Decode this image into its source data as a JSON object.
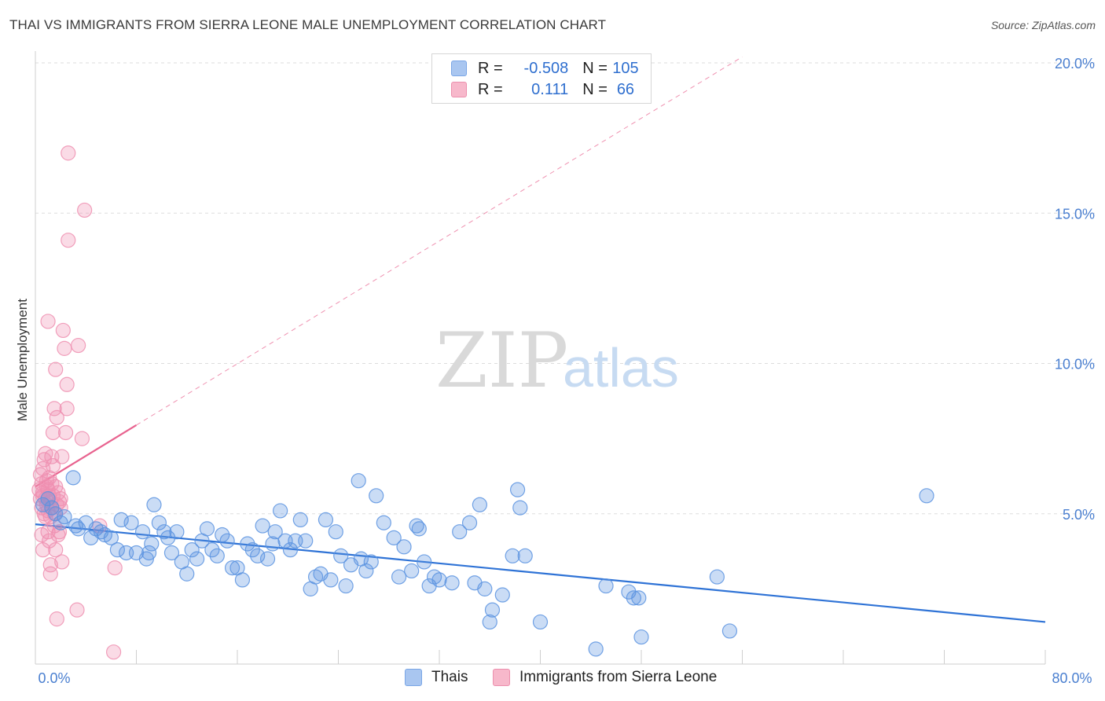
{
  "title": "THAI VS IMMIGRANTS FROM SIERRA LEONE MALE UNEMPLOYMENT CORRELATION CHART",
  "source": "Source: ZipAtlas.com",
  "watermark": {
    "zip": "ZIP",
    "atlas": "atlas"
  },
  "legend": {
    "r_label": "R =",
    "n_label": "N =",
    "rows": [
      {
        "r": "-0.508",
        "n": "105",
        "color": "#a9c6f0",
        "border": "#7aa6e6"
      },
      {
        "r": "0.111",
        "n": "66",
        "color": "#f7b8cb",
        "border": "#ec8fad"
      }
    ]
  },
  "colors": {
    "blue": "#5b93e0",
    "pink": "#ee8fb0",
    "blue_line": "#2f73d6",
    "pink_line": "#e8638f",
    "grid": "#dddddd",
    "tick_text": "#4a7fd0"
  },
  "chart_data": {
    "type": "scatter",
    "xlabel": "",
    "ylabel": "Male Unemployment",
    "xlim": [
      0,
      80
    ],
    "ylim": [
      0,
      20
    ],
    "x_tick_labels": [
      "0.0%",
      "80.0%"
    ],
    "y_ticks": [
      5,
      10,
      15,
      20
    ],
    "y_tick_labels": [
      "5.0%",
      "10.0%",
      "15.0%",
      "20.0%"
    ],
    "series": [
      {
        "name": "Thais",
        "color": "#5b93e0",
        "points": [
          [
            0.6,
            5.3
          ],
          [
            1.0,
            5.5
          ],
          [
            1.3,
            5.2
          ],
          [
            1.6,
            5.0
          ],
          [
            2.0,
            4.7
          ],
          [
            2.3,
            4.9
          ],
          [
            3.0,
            6.2
          ],
          [
            3.2,
            4.6
          ],
          [
            3.4,
            4.5
          ],
          [
            4.0,
            4.7
          ],
          [
            4.4,
            4.2
          ],
          [
            4.8,
            4.5
          ],
          [
            5.2,
            4.4
          ],
          [
            5.5,
            4.3
          ],
          [
            6.0,
            4.2
          ],
          [
            6.5,
            3.8
          ],
          [
            6.8,
            4.8
          ],
          [
            7.2,
            3.7
          ],
          [
            7.6,
            4.7
          ],
          [
            8.0,
            3.7
          ],
          [
            8.5,
            4.4
          ],
          [
            8.8,
            3.5
          ],
          [
            9.2,
            4.0
          ],
          [
            9.4,
            5.3
          ],
          [
            9.8,
            4.7
          ],
          [
            10.2,
            4.4
          ],
          [
            10.5,
            4.2
          ],
          [
            10.8,
            3.7
          ],
          [
            11.2,
            4.4
          ],
          [
            11.6,
            3.4
          ],
          [
            12.0,
            3.0
          ],
          [
            12.4,
            3.8
          ],
          [
            12.8,
            3.5
          ],
          [
            13.2,
            4.1
          ],
          [
            13.6,
            4.5
          ],
          [
            14.0,
            3.8
          ],
          [
            14.4,
            3.6
          ],
          [
            14.8,
            4.3
          ],
          [
            15.2,
            4.1
          ],
          [
            15.6,
            3.2
          ],
          [
            16.0,
            3.2
          ],
          [
            16.4,
            2.8
          ],
          [
            16.8,
            4.0
          ],
          [
            17.2,
            3.8
          ],
          [
            17.6,
            3.6
          ],
          [
            18.0,
            4.6
          ],
          [
            18.4,
            3.5
          ],
          [
            18.8,
            4.0
          ],
          [
            19.0,
            4.4
          ],
          [
            19.4,
            5.1
          ],
          [
            19.8,
            4.1
          ],
          [
            20.2,
            3.8
          ],
          [
            20.6,
            4.1
          ],
          [
            21.0,
            4.8
          ],
          [
            21.4,
            4.1
          ],
          [
            21.8,
            2.5
          ],
          [
            22.2,
            2.9
          ],
          [
            22.6,
            3.0
          ],
          [
            23.0,
            4.8
          ],
          [
            23.4,
            2.8
          ],
          [
            23.8,
            4.4
          ],
          [
            24.2,
            3.6
          ],
          [
            24.6,
            2.6
          ],
          [
            25.0,
            3.3
          ],
          [
            25.6,
            6.1
          ],
          [
            25.8,
            3.5
          ],
          [
            26.2,
            3.1
          ],
          [
            26.6,
            3.4
          ],
          [
            27.0,
            5.6
          ],
          [
            27.6,
            4.7
          ],
          [
            28.4,
            4.2
          ],
          [
            28.8,
            2.9
          ],
          [
            29.2,
            3.9
          ],
          [
            29.8,
            3.1
          ],
          [
            30.2,
            4.6
          ],
          [
            30.4,
            4.5
          ],
          [
            30.8,
            3.4
          ],
          [
            31.2,
            2.6
          ],
          [
            31.6,
            2.9
          ],
          [
            32.0,
            2.8
          ],
          [
            33.0,
            2.7
          ],
          [
            33.6,
            4.4
          ],
          [
            34.4,
            4.7
          ],
          [
            34.8,
            2.7
          ],
          [
            35.2,
            5.3
          ],
          [
            35.6,
            2.5
          ],
          [
            36.0,
            1.4
          ],
          [
            36.2,
            1.8
          ],
          [
            37.0,
            2.3
          ],
          [
            37.8,
            3.6
          ],
          [
            38.2,
            5.8
          ],
          [
            38.4,
            5.2
          ],
          [
            38.8,
            3.6
          ],
          [
            40.0,
            1.4
          ],
          [
            44.4,
            0.5
          ],
          [
            45.2,
            2.6
          ],
          [
            47.0,
            2.4
          ],
          [
            47.4,
            2.2
          ],
          [
            47.8,
            2.2
          ],
          [
            48.0,
            0.9
          ],
          [
            54.0,
            2.9
          ],
          [
            55.0,
            1.1
          ],
          [
            70.6,
            5.6
          ],
          [
            9.0,
            3.7
          ]
        ]
      },
      {
        "name": "Immigrants from Sierra Leone",
        "color": "#ee8fb0",
        "points": [
          [
            0.3,
            5.8
          ],
          [
            0.4,
            6.3
          ],
          [
            0.4,
            5.5
          ],
          [
            0.5,
            6.0
          ],
          [
            0.5,
            5.2
          ],
          [
            0.6,
            6.5
          ],
          [
            0.6,
            5.7
          ],
          [
            0.7,
            5.0
          ],
          [
            0.7,
            6.8
          ],
          [
            0.8,
            5.5
          ],
          [
            0.8,
            4.9
          ],
          [
            0.9,
            6.1
          ],
          [
            0.9,
            5.3
          ],
          [
            1.0,
            5.8
          ],
          [
            1.0,
            5.1
          ],
          [
            1.0,
            4.4
          ],
          [
            1.1,
            6.2
          ],
          [
            1.1,
            5.6
          ],
          [
            1.2,
            5.4
          ],
          [
            1.2,
            4.9
          ],
          [
            1.3,
            6.0
          ],
          [
            1.3,
            5.2
          ],
          [
            1.4,
            6.6
          ],
          [
            1.4,
            5.6
          ],
          [
            1.5,
            4.6
          ],
          [
            1.5,
            5.0
          ],
          [
            1.6,
            5.9
          ],
          [
            1.7,
            5.3
          ],
          [
            1.8,
            5.7
          ],
          [
            1.8,
            4.3
          ],
          [
            1.9,
            5.4
          ],
          [
            2.0,
            5.5
          ],
          [
            0.5,
            4.3
          ],
          [
            0.6,
            3.8
          ],
          [
            0.8,
            7.0
          ],
          [
            1.0,
            11.4
          ],
          [
            1.1,
            4.1
          ],
          [
            1.2,
            3.3
          ],
          [
            1.2,
            3.0
          ],
          [
            1.4,
            7.7
          ],
          [
            1.5,
            8.5
          ],
          [
            1.6,
            3.8
          ],
          [
            1.6,
            9.8
          ],
          [
            1.7,
            8.2
          ],
          [
            1.7,
            1.5
          ],
          [
            1.9,
            4.4
          ],
          [
            2.0,
            5.2
          ],
          [
            2.1,
            6.9
          ],
          [
            2.1,
            3.4
          ],
          [
            2.2,
            11.1
          ],
          [
            2.3,
            10.5
          ],
          [
            2.4,
            7.7
          ],
          [
            2.5,
            8.5
          ],
          [
            2.5,
            9.3
          ],
          [
            2.6,
            17.0
          ],
          [
            2.6,
            14.1
          ],
          [
            3.3,
            1.8
          ],
          [
            3.4,
            10.6
          ],
          [
            3.7,
            7.5
          ],
          [
            3.9,
            15.1
          ],
          [
            5.1,
            4.6
          ],
          [
            6.2,
            0.4
          ],
          [
            6.3,
            3.2
          ],
          [
            0.9,
            5.9
          ],
          [
            1.3,
            6.9
          ],
          [
            0.6,
            5.6
          ]
        ]
      }
    ],
    "trendlines": [
      {
        "series": "Thais",
        "x": [
          0,
          80
        ],
        "y": [
          4.65,
          1.4
        ],
        "style": "solid"
      },
      {
        "series": "Immigrants from Sierra Leone",
        "x": [
          0,
          8
        ],
        "y": [
          5.9,
          7.95
        ],
        "style": "solid"
      },
      {
        "series": "Immigrants from Sierra Leone",
        "x": [
          8,
          56
        ],
        "y": [
          7.95,
          20.2
        ],
        "style": "dashed"
      }
    ]
  },
  "bottom_legend": [
    {
      "label": "Thais",
      "color": "#a9c6f0",
      "border": "#7aa6e6"
    },
    {
      "label": "Immigrants from Sierra Leone",
      "color": "#f7b8cb",
      "border": "#ec8fad"
    }
  ]
}
